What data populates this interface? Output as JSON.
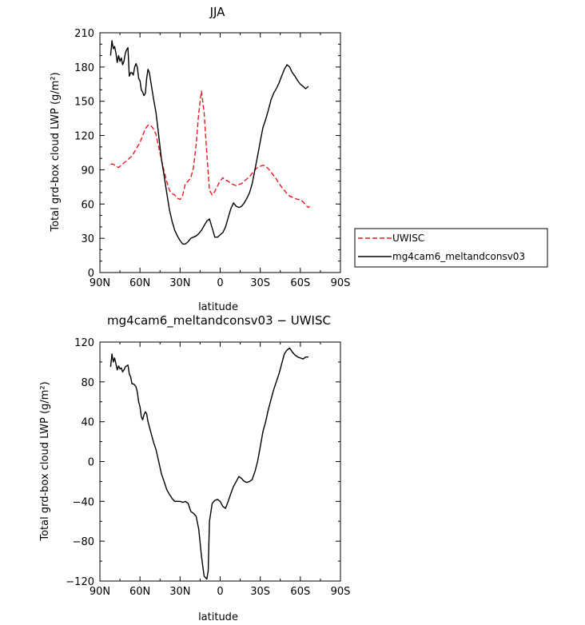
{
  "chart_data": [
    {
      "type": "line",
      "title": "JJA",
      "xlabel": "latitude",
      "ylabel": "Total grd-box cloud LWP (g/m²)",
      "xlim": [
        90,
        -90
      ],
      "ylim": [
        0,
        210
      ],
      "xticks": [
        90,
        60,
        30,
        0,
        -30,
        -60,
        -90
      ],
      "xtick_labels": [
        "90N",
        "60N",
        "30N",
        "0",
        "30S",
        "60S",
        "90S"
      ],
      "yticks": [
        0,
        30,
        60,
        90,
        120,
        150,
        180,
        210
      ],
      "ytick_labels": [
        "0",
        "30",
        "60",
        "90",
        "120",
        "150",
        "180",
        "210"
      ],
      "legend_position": "right",
      "series": [
        {
          "name": "UWISC",
          "color": "#e8191f",
          "dash": "dashed",
          "x": [
            82,
            80,
            78,
            76,
            74,
            72,
            70,
            68,
            66,
            64,
            62,
            60,
            58,
            56,
            54,
            52,
            50,
            48,
            46,
            44,
            42,
            40,
            38,
            36,
            34,
            32,
            30,
            28,
            26,
            24,
            22,
            20,
            18,
            16,
            14,
            12,
            10,
            8,
            6,
            4,
            2,
            0,
            -2,
            -4,
            -6,
            -8,
            -10,
            -12,
            -14,
            -16,
            -18,
            -20,
            -22,
            -24,
            -26,
            -28,
            -30,
            -32,
            -34,
            -36,
            -38,
            -40,
            -42,
            -44,
            -46,
            -48,
            -50,
            -52,
            -54,
            -56,
            -58,
            -60,
            -62,
            -64,
            -66,
            -67
          ],
          "values": [
            95,
            95,
            93,
            92,
            94,
            96,
            98,
            100,
            102,
            106,
            110,
            114,
            120,
            126,
            129,
            129,
            126,
            121,
            110,
            99,
            89,
            80,
            72,
            69,
            68,
            65,
            64,
            68,
            78,
            80,
            83,
            92,
            112,
            140,
            159,
            140,
            104,
            72,
            68,
            71,
            76,
            80,
            83,
            81,
            80,
            78,
            77,
            76,
            77,
            78,
            80,
            82,
            84,
            87,
            90,
            92,
            93,
            94,
            93,
            91,
            88,
            85,
            82,
            78,
            75,
            72,
            69,
            67,
            66,
            65,
            64,
            64,
            62,
            59,
            57,
            58
          ]
        },
        {
          "name": "mg4cam6_meltandconsv03",
          "color": "#000000",
          "dash": "solid",
          "x": [
            82,
            81,
            80,
            79,
            78,
            77,
            76,
            75,
            74,
            73,
            72,
            71,
            70,
            69,
            68,
            67,
            66,
            65,
            64,
            63,
            62,
            61,
            60,
            59,
            58,
            57,
            56,
            55,
            54,
            53,
            52,
            50,
            48,
            46,
            44,
            42,
            40,
            38,
            36,
            34,
            32,
            30,
            28,
            26,
            24,
            22,
            20,
            18,
            16,
            14,
            12,
            10,
            8,
            6,
            4,
            2,
            0,
            -2,
            -4,
            -6,
            -8,
            -10,
            -12,
            -14,
            -16,
            -18,
            -20,
            -22,
            -24,
            -26,
            -28,
            -30,
            -32,
            -34,
            -36,
            -38,
            -40,
            -42,
            -44,
            -46,
            -48,
            -50,
            -52,
            -54,
            -56,
            -58,
            -60,
            -62,
            -64,
            -66
          ],
          "values": [
            190,
            203,
            196,
            198,
            192,
            184,
            190,
            185,
            188,
            182,
            185,
            192,
            195,
            197,
            172,
            175,
            175,
            173,
            180,
            183,
            180,
            170,
            168,
            160,
            158,
            155,
            157,
            170,
            178,
            175,
            168,
            153,
            140,
            120,
            100,
            85,
            70,
            55,
            45,
            37,
            32,
            28,
            25,
            25,
            27,
            30,
            31,
            32,
            34,
            37,
            41,
            45,
            47,
            39,
            31,
            31,
            33,
            35,
            40,
            48,
            56,
            61,
            58,
            57,
            58,
            61,
            65,
            70,
            78,
            90,
            102,
            115,
            127,
            134,
            142,
            151,
            157,
            161,
            166,
            172,
            178,
            182,
            180,
            175,
            172,
            168,
            165,
            163,
            161,
            163
          ]
        }
      ]
    },
    {
      "type": "line",
      "title": "mg4cam6_meltandconsv03 − UWISC",
      "xlabel": "latitude",
      "ylabel": "Total grd-box cloud LWP (g/m²)",
      "xlim": [
        90,
        -90
      ],
      "ylim": [
        -120,
        120
      ],
      "xticks": [
        90,
        60,
        30,
        0,
        -30,
        -60,
        -90
      ],
      "xtick_labels": [
        "90N",
        "60N",
        "30N",
        "0",
        "30S",
        "60S",
        "90S"
      ],
      "yticks": [
        -120,
        -80,
        -40,
        0,
        40,
        80,
        120
      ],
      "ytick_labels": [
        "−120",
        "−80",
        "−40",
        "0",
        "40",
        "80",
        "120"
      ],
      "series": [
        {
          "color": "#000000",
          "dash": "solid",
          "x": [
            82,
            81,
            80,
            79,
            78,
            77,
            76,
            75,
            74,
            73,
            72,
            71,
            70,
            69,
            68,
            67,
            66,
            65,
            64,
            63,
            62,
            61,
            60,
            59,
            58,
            57,
            56,
            55,
            54,
            53,
            52,
            50,
            48,
            46,
            44,
            42,
            40,
            38,
            36,
            34,
            32,
            30,
            28,
            26,
            24,
            22,
            20,
            18,
            16,
            14,
            12,
            10,
            9,
            8,
            6,
            4,
            2,
            0,
            -2,
            -4,
            -6,
            -8,
            -10,
            -12,
            -14,
            -16,
            -18,
            -20,
            -22,
            -24,
            -26,
            -28,
            -30,
            -32,
            -34,
            -36,
            -38,
            -40,
            -42,
            -44,
            -46,
            -48,
            -50,
            -52,
            -54,
            -56,
            -58,
            -60,
            -62,
            -64,
            -66
          ],
          "values": [
            95,
            108,
            100,
            104,
            98,
            92,
            96,
            93,
            94,
            90,
            92,
            95,
            96,
            97,
            88,
            85,
            78,
            78,
            77,
            75,
            70,
            60,
            55,
            45,
            42,
            47,
            50,
            48,
            40,
            35,
            30,
            20,
            12,
            0,
            -12,
            -20,
            -28,
            -33,
            -37,
            -40,
            -40,
            -40,
            -41,
            -40,
            -42,
            -50,
            -52,
            -55,
            -68,
            -95,
            -115,
            -118,
            -110,
            -60,
            -42,
            -39,
            -38,
            -40,
            -45,
            -47,
            -40,
            -32,
            -25,
            -20,
            -15,
            -17,
            -20,
            -21,
            -20,
            -18,
            -10,
            0,
            15,
            30,
            40,
            52,
            62,
            72,
            80,
            88,
            98,
            108,
            112,
            114,
            110,
            107,
            105,
            104,
            103,
            105,
            105
          ]
        }
      ]
    }
  ]
}
